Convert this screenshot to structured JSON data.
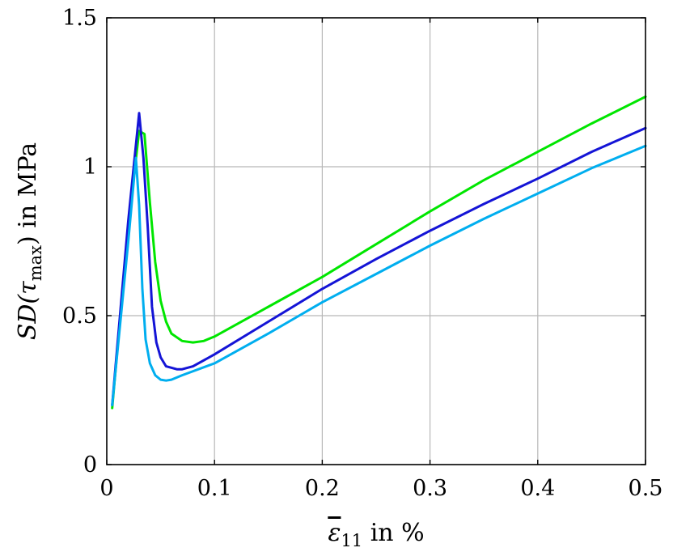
{
  "chart_data": {
    "type": "line",
    "title": "",
    "xlabel_parts": {
      "var": "ε",
      "sub": "11",
      "rest": " in %"
    },
    "ylabel_parts": {
      "pre": "SD(",
      "var": "τ",
      "sub": "max",
      "rest": ") in MPa"
    },
    "xlim": [
      0,
      0.5
    ],
    "ylim": [
      0,
      1.5
    ],
    "xticks": [
      0,
      0.1,
      0.2,
      0.3,
      0.4,
      0.5
    ],
    "xtick_labels": [
      "0",
      "0.1",
      "0.2",
      "0.3",
      "0.4",
      "0.5"
    ],
    "yticks": [
      0,
      0.5,
      1,
      1.5
    ],
    "ytick_labels": [
      "0",
      "0.5",
      "1",
      "1.5"
    ],
    "grid": true,
    "series": [
      {
        "color": "#00e600",
        "points": [
          [
            0.005,
            0.19
          ],
          [
            0.02,
            0.8
          ],
          [
            0.03,
            1.12
          ],
          [
            0.035,
            1.11
          ],
          [
            0.04,
            0.88
          ],
          [
            0.045,
            0.68
          ],
          [
            0.05,
            0.55
          ],
          [
            0.055,
            0.48
          ],
          [
            0.06,
            0.44
          ],
          [
            0.07,
            0.415
          ],
          [
            0.08,
            0.41
          ],
          [
            0.09,
            0.415
          ],
          [
            0.1,
            0.43
          ],
          [
            0.15,
            0.53
          ],
          [
            0.2,
            0.63
          ],
          [
            0.25,
            0.74
          ],
          [
            0.3,
            0.85
          ],
          [
            0.35,
            0.955
          ],
          [
            0.4,
            1.05
          ],
          [
            0.45,
            1.145
          ],
          [
            0.5,
            1.235
          ]
        ]
      },
      {
        "color": "#1414d6",
        "points": [
          [
            0.005,
            0.2
          ],
          [
            0.02,
            0.82
          ],
          [
            0.03,
            1.18
          ],
          [
            0.034,
            1.03
          ],
          [
            0.038,
            0.8
          ],
          [
            0.042,
            0.53
          ],
          [
            0.046,
            0.41
          ],
          [
            0.05,
            0.36
          ],
          [
            0.055,
            0.33
          ],
          [
            0.065,
            0.32
          ],
          [
            0.07,
            0.32
          ],
          [
            0.08,
            0.33
          ],
          [
            0.1,
            0.37
          ],
          [
            0.15,
            0.48
          ],
          [
            0.2,
            0.59
          ],
          [
            0.25,
            0.69
          ],
          [
            0.3,
            0.785
          ],
          [
            0.35,
            0.875
          ],
          [
            0.4,
            0.96
          ],
          [
            0.45,
            1.05
          ],
          [
            0.5,
            1.13
          ]
        ]
      },
      {
        "color": "#00aeef",
        "points": [
          [
            0.005,
            0.2
          ],
          [
            0.02,
            0.75
          ],
          [
            0.027,
            1.03
          ],
          [
            0.03,
            0.87
          ],
          [
            0.033,
            0.59
          ],
          [
            0.036,
            0.42
          ],
          [
            0.04,
            0.34
          ],
          [
            0.045,
            0.3
          ],
          [
            0.05,
            0.285
          ],
          [
            0.055,
            0.282
          ],
          [
            0.06,
            0.285
          ],
          [
            0.07,
            0.3
          ],
          [
            0.1,
            0.34
          ],
          [
            0.15,
            0.44
          ],
          [
            0.2,
            0.545
          ],
          [
            0.25,
            0.64
          ],
          [
            0.3,
            0.735
          ],
          [
            0.35,
            0.825
          ],
          [
            0.4,
            0.91
          ],
          [
            0.45,
            0.995
          ],
          [
            0.5,
            1.07
          ]
        ]
      }
    ]
  }
}
